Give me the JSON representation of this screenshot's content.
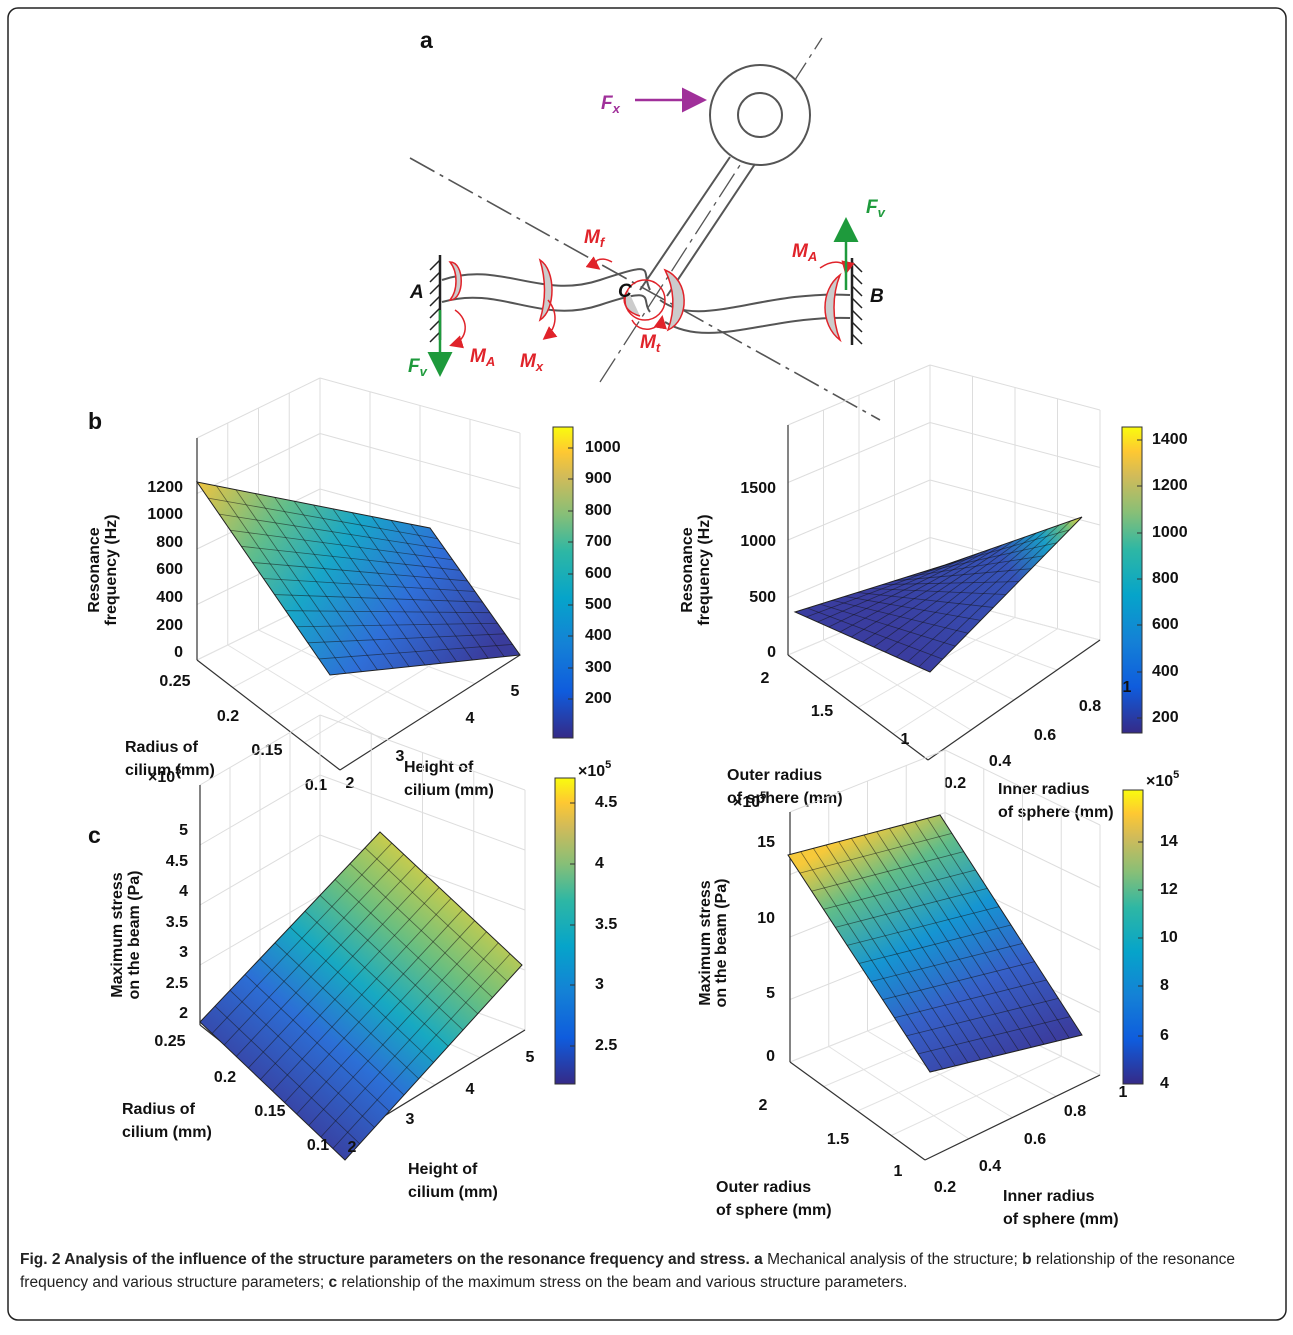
{
  "figure": {
    "panel_labels": [
      "a",
      "b",
      "c"
    ],
    "diagram": {
      "labels": [
        {
          "main": "F",
          "sub": "x",
          "color": "#a0309a"
        },
        {
          "main": "F",
          "sub": "v",
          "color": "#1e9a3c"
        },
        {
          "main": "M",
          "sub": "f",
          "color": "#e0232a"
        },
        {
          "main": "M",
          "sub": "A",
          "color": "#e0232a"
        },
        {
          "main": "A",
          "color": "#111111"
        },
        {
          "main": "C",
          "color": "#111111"
        },
        {
          "main": "B",
          "color": "#111111"
        },
        {
          "main": "M",
          "sub": "t",
          "color": "#e0232a"
        },
        {
          "main": "F",
          "sub": "v",
          "color": "#1e9a3c"
        },
        {
          "main": "M",
          "sub": "A",
          "color": "#e0232a"
        },
        {
          "main": "M",
          "sub": "x",
          "color": "#e0232a"
        }
      ]
    },
    "plots": [
      {
        "z_label": [
          "Resonance",
          "frequency (Hz)"
        ],
        "z_ticks": [
          "1200",
          "1000",
          "800",
          "600",
          "400",
          "200",
          "0"
        ],
        "x_label": [
          "Radius of",
          "cilium (mm)"
        ],
        "x_ticks": [
          "0.25",
          "0.2",
          "0.15",
          "0.1"
        ],
        "y_label": [
          "Height of",
          "cilium (mm)"
        ],
        "y_ticks": [
          "2",
          "3",
          "4",
          "5"
        ],
        "colorbar_ticks": [
          "1000",
          "900",
          "800",
          "700",
          "600",
          "500",
          "400",
          "300",
          "200"
        ]
      },
      {
        "z_label": [
          "Resonance",
          "frequency (Hz)"
        ],
        "z_ticks": [
          "1500",
          "1000",
          "500",
          "0"
        ],
        "x_label": [
          "Outer radius",
          "of sphere (mm)"
        ],
        "x_ticks": [
          "2",
          "1.5",
          "1"
        ],
        "y_label": [
          "Inner radius",
          "of sphere (mm)"
        ],
        "y_ticks": [
          "0.2",
          "0.4",
          "0.6",
          "0.8",
          "1"
        ],
        "colorbar_ticks": [
          "1400",
          "1200",
          "1000",
          "800",
          "600",
          "400",
          "200"
        ]
      },
      {
        "z_label": [
          "Maximum stress",
          "on the beam (Pa)"
        ],
        "z_multiplier": {
          "base": "×10",
          "exp": "5"
        },
        "z_ticks": [
          "5",
          "4.5",
          "4",
          "3.5",
          "3",
          "2.5",
          "2"
        ],
        "x_label": [
          "Radius of",
          "cilium (mm)"
        ],
        "x_ticks": [
          "0.25",
          "0.2",
          "0.15",
          "0.1"
        ],
        "y_label": [
          "Height of",
          "cilium (mm)"
        ],
        "y_ticks": [
          "2",
          "3",
          "4",
          "5"
        ],
        "colorbar_multiplier": {
          "base": "×10",
          "exp": "5"
        },
        "colorbar_ticks": [
          "4.5",
          "4",
          "3.5",
          "3",
          "2.5"
        ]
      },
      {
        "z_label": [
          "Maximum stress",
          "on the beam (Pa)"
        ],
        "z_multiplier": {
          "base": "×10",
          "exp": "5"
        },
        "z_ticks": [
          "15",
          "10",
          "5",
          "0"
        ],
        "x_label": [
          "Outer radius",
          "of sphere (mm)"
        ],
        "x_ticks": [
          "2",
          "1.5",
          "1"
        ],
        "y_label": [
          "Inner radius",
          "of sphere (mm)"
        ],
        "y_ticks": [
          "0.2",
          "0.4",
          "0.6",
          "0.8",
          "1"
        ],
        "colorbar_multiplier": {
          "base": "×10",
          "exp": "5"
        },
        "colorbar_ticks": [
          "14",
          "12",
          "10",
          "8",
          "6",
          "4"
        ]
      }
    ],
    "caption": [
      {
        "text": "Fig. 2 Analysis of the influence of the structure parameters on the resonance frequency and stress.",
        "bold": true
      },
      {
        "text": " a",
        "bold": true
      },
      {
        "text": " Mechanical analysis of the structure; ",
        "bold": false
      },
      {
        "text": "b",
        "bold": true
      },
      {
        "text": " relationship of the resonance frequency and various structure parameters; ",
        "bold": false
      },
      {
        "text": "c",
        "bold": true
      },
      {
        "text": " relationship of the maximum stress on the beam and various structure parameters.",
        "bold": false
      }
    ]
  }
}
